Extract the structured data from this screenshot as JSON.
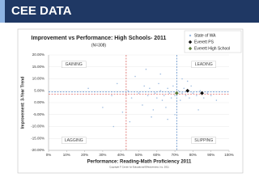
{
  "header": {
    "title": "CEE DATA"
  },
  "chart_data": {
    "type": "scatter",
    "title": "Improvement vs Performance:  High Schools- 2011",
    "subtitle": "(N=308)",
    "x_label": "Performance: Reading-Math Proficiency 2011",
    "y_label": "Improvement: 3-Year Trend",
    "footnote": "Copyright © Center for Educational Effectiveness, Inc. 2011",
    "xlim": [
      0,
      100
    ],
    "ylim": [
      -20,
      20
    ],
    "xticks": [
      {
        "value": 0,
        "label": "0%"
      },
      {
        "value": 10,
        "label": "10%"
      },
      {
        "value": 20,
        "label": "20%"
      },
      {
        "value": 30,
        "label": "30%"
      },
      {
        "value": 40,
        "label": "40%"
      },
      {
        "value": 50,
        "label": "50%"
      },
      {
        "value": 60,
        "label": "60%"
      },
      {
        "value": 70,
        "label": "70%"
      },
      {
        "value": 80,
        "label": "80%"
      },
      {
        "value": 90,
        "label": "90%"
      },
      {
        "value": 100,
        "label": "100%"
      }
    ],
    "yticks": [
      {
        "value": 20,
        "label": "20.00%"
      },
      {
        "value": 15,
        "label": "15.00%"
      },
      {
        "value": 10,
        "label": "10.00%"
      },
      {
        "value": 5,
        "label": "5.00%"
      },
      {
        "value": 0,
        "label": "0.00%"
      },
      {
        "value": -5,
        "label": "-5.00%"
      },
      {
        "value": -10,
        "label": "-10.00%"
      },
      {
        "value": -15,
        "label": "-15.00%"
      },
      {
        "value": -20,
        "label": "-20.00%"
      }
    ],
    "reference_lines": [
      {
        "axis": "x",
        "value": 43,
        "color": "#d9534f"
      },
      {
        "axis": "x",
        "value": 71,
        "color": "#4a7fc1"
      },
      {
        "axis": "y",
        "value": 4.5,
        "color": "#4a7fc1"
      },
      {
        "axis": "y",
        "value": 3.5,
        "color": "#d9534f"
      }
    ],
    "annotations": [
      {
        "text": "GAINING",
        "x": 14,
        "y": 16
      },
      {
        "text": "LEADING",
        "x": 86,
        "y": 16
      },
      {
        "text": "LAGGING",
        "x": 14,
        "y": -15.8
      },
      {
        "text": "SLIPPING",
        "x": 86,
        "y": -15.8
      }
    ],
    "series": [
      {
        "name": "State of WA",
        "color": "#9dbbe0",
        "marker": "circle",
        "x": [
          22,
          30,
          35,
          38,
          41,
          44,
          46,
          48,
          50,
          52,
          53,
          55,
          56,
          58,
          59,
          60,
          61,
          62,
          63,
          64,
          65,
          66,
          67,
          68,
          69,
          70,
          72,
          73,
          74,
          75,
          76,
          78,
          79,
          80,
          82,
          84,
          86,
          88,
          90,
          93,
          45,
          57,
          62,
          70,
          77,
          83,
          54,
          66,
          36,
          74
        ],
        "y": [
          6,
          -2,
          3,
          8,
          -4,
          5,
          2,
          11,
          4,
          -1,
          7,
          3,
          6,
          -3,
          4,
          2,
          8,
          5,
          1,
          3,
          -2,
          6,
          4,
          2,
          7,
          3,
          5,
          1,
          4,
          6,
          3,
          2,
          7,
          4,
          3,
          5,
          2,
          4,
          3,
          1,
          -8,
          -6,
          12,
          -5,
          9,
          -3,
          14,
          -7,
          -10,
          10
        ]
      },
      {
        "name": "Everett PS",
        "color": "#111111",
        "marker": "diamond",
        "x": [
          77,
          85
        ],
        "y": [
          5,
          4
        ]
      },
      {
        "name": "Everett High School",
        "color": "#5b7a3a",
        "marker": "diamond",
        "x": [
          71
        ],
        "y": [
          4
        ]
      }
    ]
  }
}
